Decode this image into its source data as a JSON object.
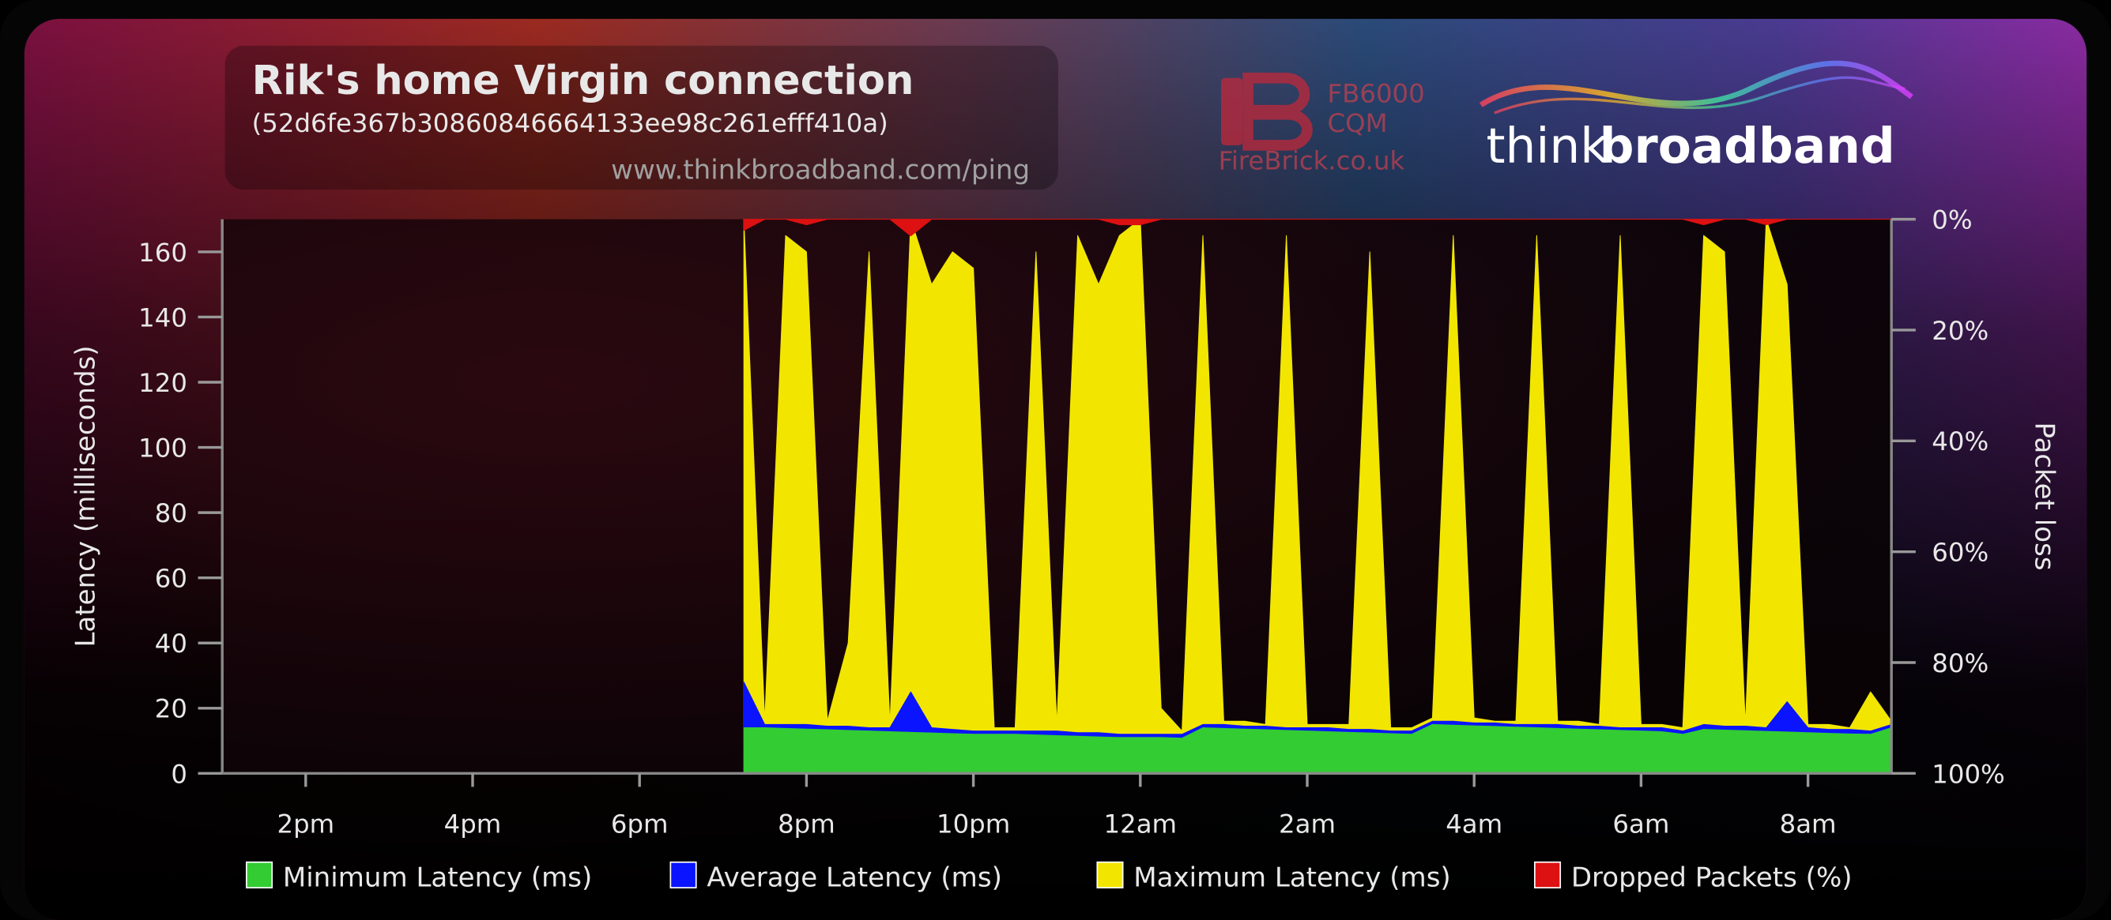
{
  "chart_data": {
    "type": "area",
    "title": "Rik's home Virgin connection",
    "subtitle": "(52d6fe367b30860846664133ee98c261efff410a)",
    "annotations": [
      "www.thinkbroadband.com/ping",
      "FB6000",
      "CQM",
      "FireBrick.co.uk",
      "think",
      "broadband"
    ],
    "ylabel": "Latency (milliseconds)",
    "y2label": "Packet loss",
    "xlim": [
      13,
      33
    ],
    "xticks": [
      {
        "value": 14,
        "label": "2pm"
      },
      {
        "value": 16,
        "label": "4pm"
      },
      {
        "value": 18,
        "label": "6pm"
      },
      {
        "value": 20,
        "label": "8pm"
      },
      {
        "value": 22,
        "label": "10pm"
      },
      {
        "value": 24,
        "label": "12am"
      },
      {
        "value": 26,
        "label": "2am"
      },
      {
        "value": 28,
        "label": "4am"
      },
      {
        "value": 30,
        "label": "6am"
      },
      {
        "value": 32,
        "label": "8am"
      }
    ],
    "ylim": [
      0,
      170
    ],
    "yticks": [
      0,
      20,
      40,
      60,
      80,
      100,
      120,
      140,
      160
    ],
    "y2lim": [
      100,
      0
    ],
    "y2ticks": [
      {
        "value": 0,
        "label": "0%"
      },
      {
        "value": 20,
        "label": "20%"
      },
      {
        "value": 40,
        "label": "40%"
      },
      {
        "value": 60,
        "label": "60%"
      },
      {
        "value": 80,
        "label": "80%"
      },
      {
        "value": 100,
        "label": "100%"
      }
    ],
    "grid": false,
    "x": [
      19.25,
      19.5,
      19.75,
      20.0,
      20.25,
      20.5,
      20.75,
      21.0,
      21.25,
      21.5,
      21.75,
      22.0,
      22.25,
      22.5,
      22.75,
      23.0,
      23.25,
      23.5,
      23.75,
      24.0,
      24.25,
      24.5,
      24.75,
      25.0,
      25.25,
      25.5,
      25.75,
      26.0,
      26.25,
      26.5,
      26.75,
      27.0,
      27.25,
      27.5,
      27.75,
      28.0,
      28.25,
      28.5,
      28.75,
      29.0,
      29.25,
      29.5,
      29.75,
      30.0,
      30.25,
      30.5,
      30.75,
      31.0,
      31.25,
      31.5,
      31.75,
      32.0,
      32.25,
      32.5,
      32.75,
      33.0
    ],
    "series": [
      {
        "name": "Minimum Latency (ms)",
        "color": "#33cc33",
        "values": [
          14,
          14,
          13.8,
          13.6,
          13.4,
          13.2,
          13,
          12.8,
          12.6,
          12.4,
          12.2,
          12,
          12,
          12,
          11.8,
          11.6,
          11.4,
          11.2,
          11,
          11,
          11,
          10.8,
          14,
          13.8,
          13.6,
          13.4,
          13.2,
          13,
          12.8,
          12.6,
          12.4,
          12.2,
          12,
          15,
          14.8,
          14.6,
          14.4,
          14.2,
          14,
          13.8,
          13.6,
          13.4,
          13.2,
          13,
          12.8,
          12,
          13.5,
          13.3,
          13.1,
          12.9,
          12.7,
          12.5,
          12.3,
          12.1,
          12,
          14
        ]
      },
      {
        "name": "Average Latency (ms)",
        "color": "#0a14ff",
        "values": [
          28,
          15,
          15,
          15,
          14.5,
          14.5,
          14,
          14,
          25,
          14,
          13.5,
          13,
          13,
          13,
          13,
          13,
          12.5,
          12.5,
          12,
          12,
          12,
          12,
          15,
          15,
          14.5,
          14.5,
          14,
          14,
          14,
          13.5,
          13.5,
          13,
          13,
          16,
          16,
          15.5,
          15.5,
          15,
          15,
          15,
          14.5,
          14.5,
          14,
          14,
          14,
          13,
          15,
          14.5,
          14.5,
          14,
          22,
          14,
          13.5,
          13.5,
          13,
          15
        ]
      },
      {
        "name": "Maximum Latency (ms)",
        "color": "#f2e600",
        "values": [
          170,
          16,
          165,
          160,
          16,
          40,
          160,
          15,
          170,
          150,
          160,
          155,
          14,
          14,
          160,
          15,
          165,
          150,
          165,
          170,
          20,
          13,
          165,
          16,
          16,
          15,
          165,
          15,
          15,
          15,
          160,
          14,
          14,
          17,
          165,
          17,
          16,
          16,
          165,
          16,
          16,
          15,
          165,
          15,
          15,
          14,
          165,
          160,
          15,
          170,
          150,
          15,
          15,
          14,
          25,
          16
        ]
      },
      {
        "name": "Dropped Packets (%)",
        "color": "#dd1111",
        "axis": "y2",
        "values": [
          2,
          0,
          0,
          1,
          0,
          0,
          0,
          0,
          3,
          0,
          0,
          0,
          0,
          0,
          0,
          0,
          0,
          0,
          1,
          1,
          0,
          0,
          0,
          0,
          0,
          0,
          0,
          0,
          0,
          0,
          0,
          0,
          0,
          0,
          0,
          0,
          0,
          0,
          0,
          0,
          0,
          0,
          0,
          0,
          0,
          0,
          1,
          0,
          0,
          1,
          0,
          0,
          0,
          0,
          0,
          0
        ]
      }
    ]
  }
}
